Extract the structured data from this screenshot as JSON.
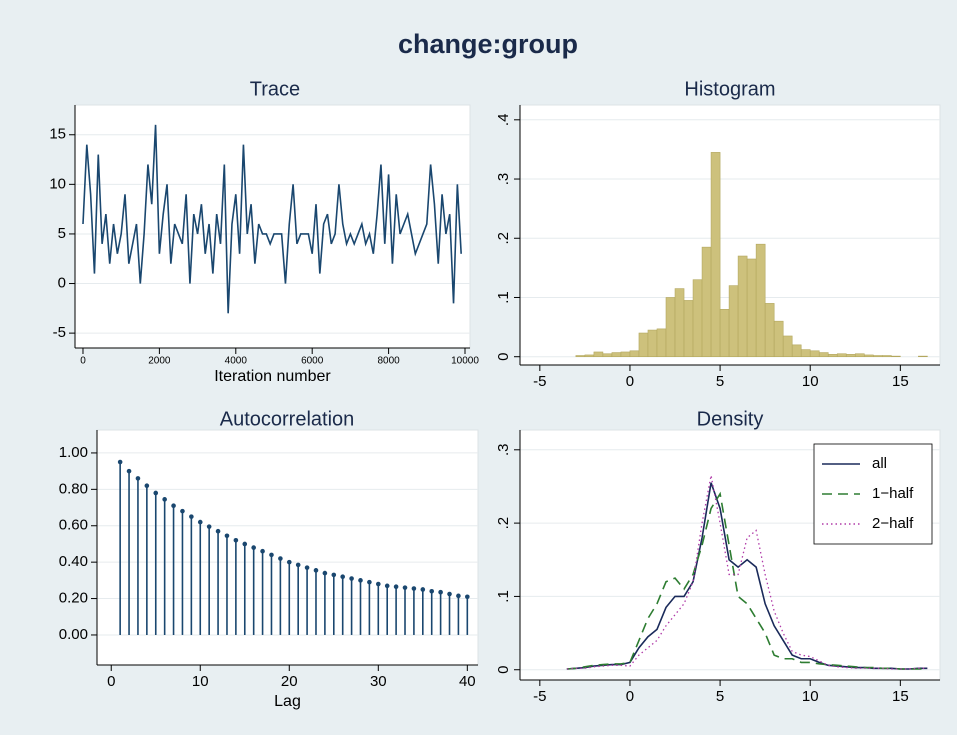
{
  "title": "change:group",
  "chart_data": [
    {
      "type": "line",
      "title": "Trace",
      "xlabel": "Iteration number",
      "x": [
        0,
        100,
        200,
        300,
        400,
        500,
        600,
        700,
        800,
        900,
        1000,
        1100,
        1200,
        1300,
        1400,
        1500,
        1600,
        1700,
        1800,
        1900,
        2000,
        2100,
        2200,
        2300,
        2400,
        2500,
        2600,
        2700,
        2800,
        2900,
        3000,
        3100,
        3200,
        3300,
        3400,
        3500,
        3600,
        3700,
        3800,
        3900,
        4000,
        4100,
        4200,
        4300,
        4400,
        4500,
        4600,
        4700,
        4800,
        4900,
        5000,
        5100,
        5200,
        5300,
        5400,
        5500,
        5600,
        5700,
        5800,
        5900,
        6000,
        6100,
        6200,
        6300,
        6400,
        6500,
        6600,
        6700,
        6800,
        6900,
        7000,
        7100,
        7200,
        7300,
        7400,
        7500,
        7600,
        7700,
        7800,
        7900,
        8000,
        8100,
        8200,
        8300,
        8400,
        8500,
        8600,
        8700,
        8800,
        8900,
        9000,
        9100,
        9200,
        9300,
        9400,
        9500,
        9600,
        9700,
        9800,
        9900
      ],
      "series": [
        {
          "color": "#1a476f",
          "values": [
            6,
            14,
            9,
            1,
            13,
            4,
            7,
            2,
            6,
            3,
            5,
            9,
            2,
            4,
            6,
            0,
            5,
            12,
            8,
            16,
            3,
            7,
            10,
            2,
            6,
            5,
            4,
            9,
            0,
            7,
            5,
            8,
            3,
            6,
            1,
            7,
            4,
            12,
            -3,
            6,
            9,
            3,
            14,
            5,
            8,
            2,
            6,
            5,
            5,
            4,
            5,
            5,
            5,
            0,
            6,
            10,
            4,
            5,
            5,
            5,
            3,
            8,
            1,
            6,
            7,
            4,
            5,
            10,
            6,
            4,
            5,
            4,
            5,
            6,
            4,
            5,
            3,
            7,
            12,
            4,
            11,
            2,
            9,
            5,
            6,
            7,
            5,
            3,
            4,
            5,
            6,
            12,
            8,
            2,
            9,
            5,
            7,
            -2,
            10,
            3
          ]
        }
      ],
      "xlim": [
        -209,
        10131
      ],
      "ylim": [
        -6.5,
        18
      ],
      "xticks": [
        0,
        2000,
        4000,
        6000,
        8000,
        10000
      ],
      "yticks": [
        -5,
        0,
        5,
        10,
        15
      ],
      "grid": true
    },
    {
      "type": "histogram",
      "title": "Histogram",
      "bins": [
        -3.5,
        -3,
        -2.5,
        -2,
        -1.5,
        -1,
        -0.5,
        0,
        0.5,
        1,
        1.5,
        2,
        2.5,
        3,
        3.5,
        4,
        4.5,
        5,
        5.5,
        6,
        6.5,
        7,
        7.5,
        8,
        8.5,
        9,
        9.5,
        10,
        10.5,
        11,
        11.5,
        12,
        12.5,
        13,
        13.5,
        14,
        14.5,
        15,
        15.5,
        16,
        16.5
      ],
      "series": [
        {
          "color": "#cdc17c",
          "values": [
            0,
            0.002,
            0.003,
            0.008,
            0.005,
            0.007,
            0.008,
            0.01,
            0.04,
            0.045,
            0.047,
            0.1,
            0.115,
            0.095,
            0.13,
            0.185,
            0.345,
            0.08,
            0.12,
            0.17,
            0.165,
            0.19,
            0.09,
            0.06,
            0.035,
            0.02,
            0.012,
            0.01,
            0.007,
            0.004,
            0.005,
            0.004,
            0.005,
            0.003,
            0.002,
            0.002,
            0.001,
            0,
            0,
            0.001
          ]
        }
      ],
      "xlim": [
        -6.1,
        17.2
      ],
      "ylim": [
        -0.014,
        0.425
      ],
      "xticks": [
        -5,
        0,
        5,
        10,
        15
      ],
      "yticks": [
        0,
        {
          "value": 0.1,
          "label": ".1"
        },
        {
          "value": 0.2,
          "label": ".2"
        },
        {
          "value": 0.3,
          "label": ".3"
        },
        {
          "value": 0.4,
          "label": ".4"
        }
      ],
      "grid": true
    },
    {
      "type": "stem",
      "title": "Autocorrelation",
      "xlabel": "Lag",
      "x": [
        1,
        2,
        3,
        4,
        5,
        6,
        7,
        8,
        9,
        10,
        11,
        12,
        13,
        14,
        15,
        16,
        17,
        18,
        19,
        20,
        21,
        22,
        23,
        24,
        25,
        26,
        27,
        28,
        29,
        30,
        31,
        32,
        33,
        34,
        35,
        36,
        37,
        38,
        39,
        40
      ],
      "series": [
        {
          "color": "#1a476f",
          "values": [
            0.95,
            0.9,
            0.86,
            0.82,
            0.78,
            0.745,
            0.71,
            0.68,
            0.65,
            0.62,
            0.595,
            0.57,
            0.545,
            0.52,
            0.5,
            0.48,
            0.46,
            0.44,
            0.42,
            0.4,
            0.385,
            0.37,
            0.355,
            0.34,
            0.33,
            0.32,
            0.31,
            0.3,
            0.29,
            0.28,
            0.27,
            0.265,
            0.26,
            0.255,
            0.25,
            0.24,
            0.235,
            0.225,
            0.215,
            0.21
          ]
        }
      ],
      "xlim": [
        -1.6,
        41.2
      ],
      "ylim": [
        -0.165,
        1.126
      ],
      "xticks": [
        0,
        10,
        20,
        30,
        40
      ],
      "yticks": [
        {
          "value": 0,
          "label": "0.00"
        },
        {
          "value": 0.2,
          "label": "0.20"
        },
        {
          "value": 0.4,
          "label": "0.40"
        },
        {
          "value": 0.6,
          "label": "0.60"
        },
        {
          "value": 0.8,
          "label": "0.80"
        },
        {
          "value": 1,
          "label": "1.00"
        }
      ],
      "grid": true
    },
    {
      "type": "line",
      "title": "Density",
      "legend": "top-right",
      "x": [
        -3.5,
        -3,
        -2.5,
        -2,
        -1.5,
        -1,
        -0.5,
        0,
        0.5,
        1,
        1.5,
        2,
        2.5,
        3,
        3.5,
        4,
        4.5,
        5,
        5.5,
        6,
        6.5,
        7,
        7.5,
        8,
        8.5,
        9,
        9.5,
        10,
        10.5,
        11,
        11.5,
        12,
        12.5,
        13,
        13.5,
        14,
        14.5,
        15,
        15.5,
        16,
        16.5
      ],
      "series": [
        {
          "name": "all",
          "color": "#1a2a5a",
          "style": "solid",
          "values": [
            0.001,
            0.002,
            0.003,
            0.005,
            0.006,
            0.007,
            0.007,
            0.01,
            0.03,
            0.045,
            0.055,
            0.085,
            0.1,
            0.1,
            0.12,
            0.18,
            0.255,
            0.22,
            0.15,
            0.14,
            0.15,
            0.14,
            0.09,
            0.06,
            0.04,
            0.02,
            0.015,
            0.015,
            0.01,
            0.006,
            0.005,
            0.004,
            0.003,
            0.003,
            0.002,
            0.002,
            0.002,
            0.001,
            0.001,
            0.002,
            0.002
          ]
        },
        {
          "name": "1−half",
          "color": "#2e7d32",
          "style": "dashed",
          "values": [
            0.001,
            0.002,
            0.004,
            0.006,
            0.007,
            0.008,
            0.008,
            0.01,
            0.04,
            0.07,
            0.09,
            0.12,
            0.125,
            0.11,
            0.13,
            0.17,
            0.22,
            0.24,
            0.17,
            0.1,
            0.09,
            0.07,
            0.05,
            0.02,
            0.015,
            0.015,
            0.01,
            0.01,
            0.008,
            0.007,
            0.006,
            0.005,
            0.004,
            0.003,
            0.003,
            0.002,
            0.002,
            0.001,
            0.001,
            0.001,
            0.001
          ]
        },
        {
          "name": "2−half",
          "color": "#b03aa8",
          "style": "dotted",
          "values": [
            0.001,
            0.002,
            0.002,
            0.004,
            0.005,
            0.006,
            0.006,
            0.005,
            0.02,
            0.03,
            0.04,
            0.06,
            0.075,
            0.09,
            0.12,
            0.2,
            0.265,
            0.2,
            0.13,
            0.13,
            0.18,
            0.19,
            0.13,
            0.08,
            0.05,
            0.025,
            0.02,
            0.018,
            0.012,
            0.006,
            0.004,
            0.003,
            0.002,
            0.002,
            0.002,
            0.002,
            0.001,
            0.001,
            0.001,
            0.002,
            0.002
          ]
        }
      ],
      "xlim": [
        -6.1,
        17.2
      ],
      "ylim": [
        -0.014,
        0.327
      ],
      "xticks": [
        -5,
        0,
        5,
        10,
        15
      ],
      "yticks": [
        0,
        {
          "value": 0.1,
          "label": ".1"
        },
        {
          "value": 0.2,
          "label": ".2"
        },
        {
          "value": 0.3,
          "label": ".3"
        }
      ],
      "grid": true
    }
  ]
}
